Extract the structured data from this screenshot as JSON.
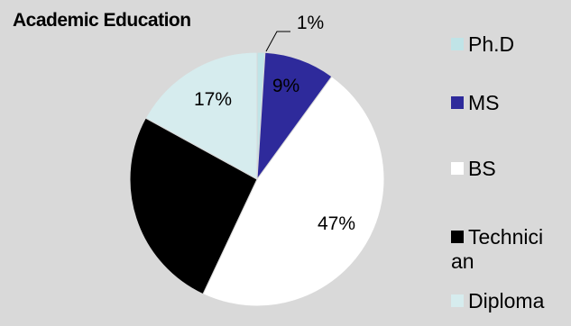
{
  "chart_data": {
    "type": "pie",
    "title": "Academic Education",
    "slices": [
      {
        "label": "Ph.D",
        "value": 1,
        "data_label": "1%",
        "color": "#c0e4e7"
      },
      {
        "label": "MS",
        "value": 9,
        "data_label": "9%",
        "color": "#2e2a9b"
      },
      {
        "label": "BS",
        "value": 47,
        "data_label": "47%",
        "color": "#ffffff"
      },
      {
        "label": "Technician",
        "value": 26,
        "data_label": "",
        "color": "#000000"
      },
      {
        "label": "Diploma",
        "value": 17,
        "data_label": "17%",
        "color": "#d6ecee"
      }
    ],
    "legend": {
      "placement": "right",
      "entries": [
        {
          "lines": [
            "Ph.D"
          ]
        },
        {
          "lines": [
            "MS"
          ]
        },
        {
          "lines": [
            "BS"
          ]
        },
        {
          "lines": [
            "Technici",
            "an"
          ]
        },
        {
          "lines": [
            "Diploma"
          ]
        }
      ]
    },
    "background": "#d9d9d9"
  }
}
